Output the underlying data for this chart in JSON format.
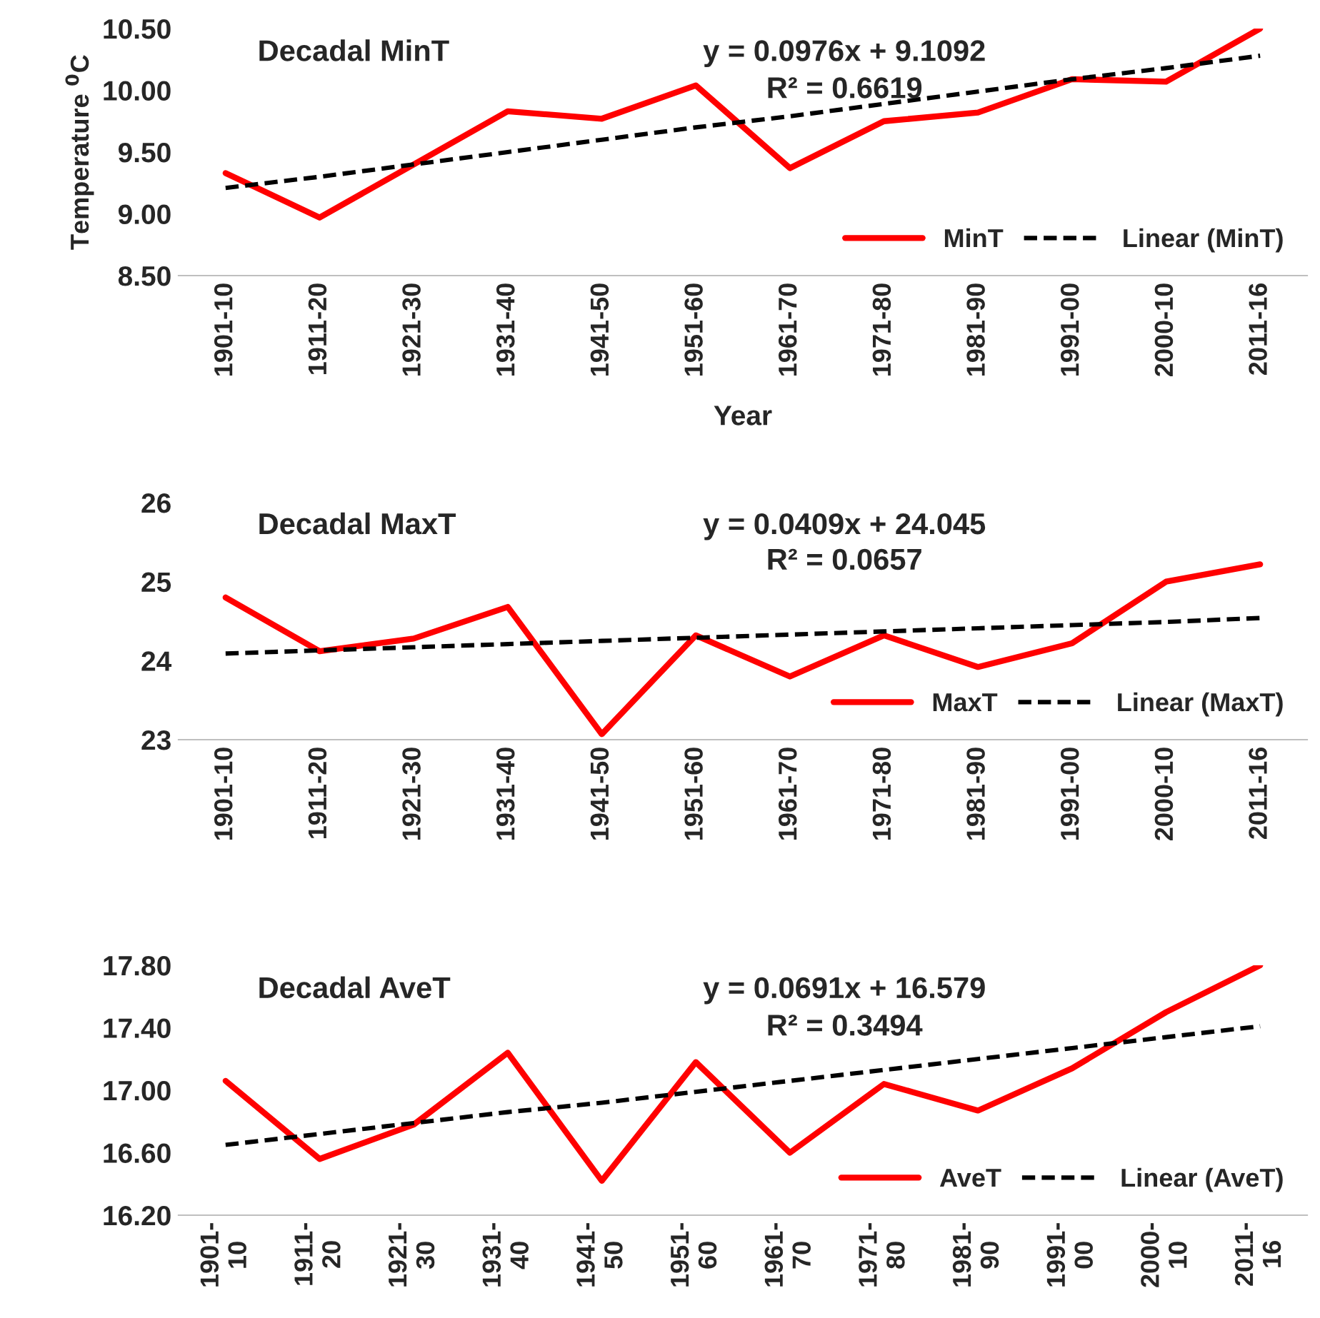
{
  "chart_data": [
    {
      "type": "line",
      "title": "Decadal MinT",
      "ylabel": "Temperature $^{0}$C",
      "xlabel": "Year",
      "categories": [
        "1901-10",
        "1911-20",
        "1921-30",
        "1931-40",
        "1941-50",
        "1951-60",
        "1961-70",
        "1971-80",
        "1981-90",
        "1991-00",
        "2000-10",
        "2011-16"
      ],
      "series": [
        {
          "name": "MinT",
          "color": "#ff0000",
          "line_style": "solid",
          "values": [
            9.33,
            8.97,
            9.4,
            9.83,
            9.77,
            10.04,
            9.37,
            9.75,
            9.82,
            10.09,
            10.07,
            10.5
          ]
        },
        {
          "name": "Linear (MinT)",
          "color": "#000000",
          "line_style": "dashed",
          "values": [
            9.21,
            9.3,
            9.4,
            9.5,
            9.6,
            9.7,
            9.79,
            9.89,
            9.99,
            10.09,
            10.18,
            10.28
          ]
        }
      ],
      "ylim": [
        8.5,
        10.5
      ],
      "yticks": [
        {
          "value": 8.5,
          "label": "8.50"
        },
        {
          "value": 9,
          "label": "9.00"
        },
        {
          "value": 9.5,
          "label": "9.50"
        },
        {
          "value": 10,
          "label": "10.00"
        },
        {
          "value": 10.5,
          "label": "10.50"
        }
      ],
      "annotations": [
        "y = 0.0976x + 9.1092",
        "R² = 0.6619"
      ],
      "legend": "bottom right",
      "grid": false,
      "marker": "none"
    },
    {
      "type": "line",
      "title": "Decadal MaxT",
      "categories": [
        "1901-10",
        "1911-20",
        "1921-30",
        "1931-40",
        "1941-50",
        "1951-60",
        "1961-70",
        "1971-80",
        "1981-90",
        "1991-00",
        "2000-10",
        "2011-16"
      ],
      "series": [
        {
          "name": "MaxT",
          "color": "#ff0000",
          "line_style": "solid",
          "values": [
            24.8,
            24.12,
            24.28,
            24.68,
            23.07,
            24.32,
            23.8,
            24.32,
            23.92,
            24.22,
            25.0,
            25.22
          ]
        },
        {
          "name": "Linear (MaxT)",
          "color": "#000000",
          "line_style": "dashed",
          "values": [
            24.09,
            24.13,
            24.17,
            24.21,
            24.25,
            24.29,
            24.33,
            24.37,
            24.41,
            24.45,
            24.49,
            24.54
          ]
        }
      ],
      "ylim": [
        23,
        26
      ],
      "yticks": [
        23,
        24,
        25,
        26
      ],
      "annotations": [
        "y = 0.0409x + 24.045",
        "R² = 0.0657"
      ],
      "legend": "bottom right",
      "grid": false,
      "marker": "none"
    },
    {
      "type": "line",
      "title": "Decadal AveT",
      "categories": [
        "1901-\n10",
        "1911-\n20",
        "1921-\n30",
        "1931-\n40",
        "1941-\n50",
        "1951-\n60",
        "1961-\n70",
        "1971-\n80",
        "1981-\n90",
        "1991-\n00",
        "2000-\n10",
        "2011-\n16"
      ],
      "series": [
        {
          "name": "AveT",
          "color": "#ff0000",
          "line_style": "solid",
          "values": [
            17.06,
            16.56,
            16.78,
            17.24,
            16.42,
            17.18,
            16.6,
            17.04,
            16.87,
            17.14,
            17.5,
            17.8
          ]
        },
        {
          "name": "Linear (AveT)",
          "color": "#000000",
          "line_style": "dashed",
          "values": [
            16.65,
            16.72,
            16.79,
            16.86,
            16.92,
            16.99,
            17.06,
            17.13,
            17.2,
            17.27,
            17.34,
            17.41
          ]
        }
      ],
      "ylim": [
        16.2,
        17.8
      ],
      "yticks": [
        {
          "value": 16.2,
          "label": "16.20"
        },
        {
          "value": 16.6,
          "label": "16.60"
        },
        {
          "value": 17.0,
          "label": "17.00"
        },
        {
          "value": 17.4,
          "label": "17.40"
        },
        {
          "value": 17.8,
          "label": "17.80"
        }
      ],
      "annotations": [
        "y = 0.0691x + 16.579",
        "R² = 0.3494"
      ],
      "legend": "bottom right",
      "grid": false,
      "marker": "none"
    }
  ]
}
